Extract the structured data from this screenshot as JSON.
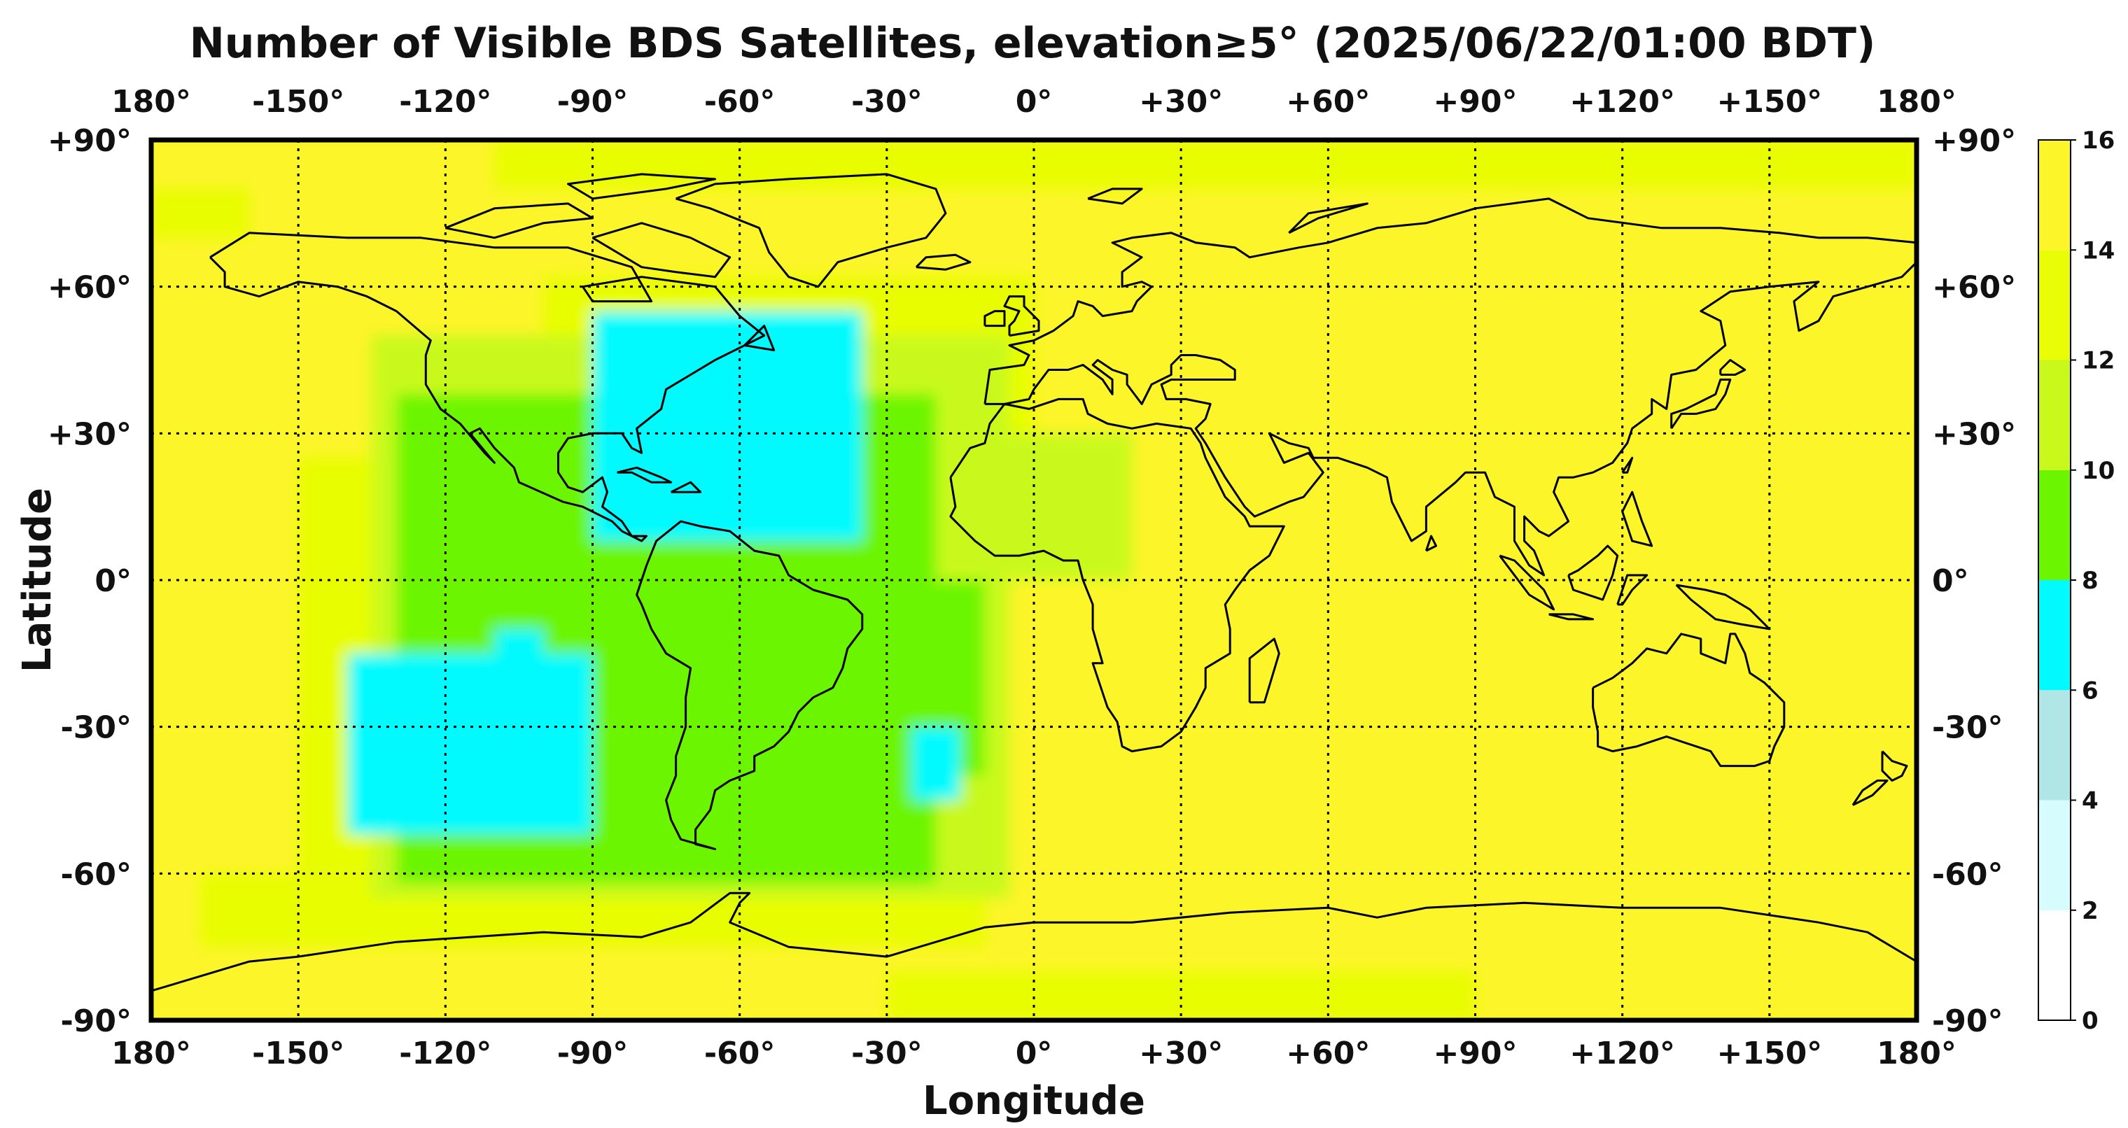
{
  "title": "Number of Visible BDS Satellites, elevation≥5° (2025/06/22/01:00 BDT)",
  "xlabel": "Longitude",
  "ylabel": "Latitude",
  "lon_ticks": [
    "180°",
    "-150°",
    "-120°",
    "-90°",
    "-60°",
    "-30°",
    "0°",
    "+30°",
    "+60°",
    "+90°",
    "+120°",
    "+150°",
    "180°"
  ],
  "lat_ticks": [
    "+90°",
    "+60°",
    "+30°",
    "0°",
    "-30°",
    "-60°",
    "-90°"
  ],
  "colorbar": {
    "ticks": [
      "0",
      "2",
      "4",
      "6",
      "8",
      "10",
      "12",
      "14",
      "16"
    ],
    "bins": [
      {
        "range": [
          0,
          2
        ],
        "color": "#ffffff"
      },
      {
        "range": [
          2,
          4
        ],
        "color": "#d6fcfd"
      },
      {
        "range": [
          4,
          6
        ],
        "color": "#b1e6e7"
      },
      {
        "range": [
          6,
          8
        ],
        "color": "#00fafe"
      },
      {
        "range": [
          8,
          10
        ],
        "color": "#6cf500"
      },
      {
        "range": [
          10,
          12
        ],
        "color": "#c9f91c"
      },
      {
        "range": [
          12,
          14
        ],
        "color": "#e8fd06"
      },
      {
        "range": [
          14,
          16
        ],
        "color": "#fcf52a"
      }
    ]
  },
  "map": {
    "extent": {
      "lon": [
        -180,
        180
      ],
      "lat": [
        -90,
        90
      ]
    },
    "background_value": 15,
    "regions": [
      {
        "value": 13,
        "lon": [
          -30,
          90
        ],
        "lat": [
          -90,
          -80
        ]
      },
      {
        "value": 13,
        "lon": [
          -170,
          -10
        ],
        "lat": [
          -75,
          -60
        ]
      },
      {
        "value": 13,
        "lon": [
          -180,
          -160
        ],
        "lat": [
          70,
          80
        ]
      },
      {
        "value": 13,
        "lon": [
          -110,
          180
        ],
        "lat": [
          80,
          90
        ]
      },
      {
        "value": 13,
        "lon": [
          -100,
          0
        ],
        "lat": [
          25,
          62
        ]
      },
      {
        "value": 13,
        "lon": [
          -150,
          -20
        ],
        "lat": [
          -60,
          25
        ]
      },
      {
        "value": 11,
        "lon": [
          -135,
          -5
        ],
        "lat": [
          -65,
          50
        ]
      },
      {
        "value": 11,
        "lon": [
          -30,
          20
        ],
        "lat": [
          0,
          30
        ]
      },
      {
        "value": 9,
        "lon": [
          -130,
          -20
        ],
        "lat": [
          -62,
          38
        ]
      },
      {
        "value": 9,
        "lon": [
          -25,
          -10
        ],
        "lat": [
          -40,
          0
        ]
      },
      {
        "value": 7,
        "lon": [
          -90,
          -35
        ],
        "lat": [
          8,
          55
        ]
      },
      {
        "value": 7,
        "lon": [
          -140,
          -90
        ],
        "lat": [
          -52,
          -15
        ]
      },
      {
        "value": 7,
        "lon": [
          -110,
          -100
        ],
        "lat": [
          -15,
          -10
        ]
      },
      {
        "value": 7,
        "lon": [
          -25,
          -15
        ],
        "lat": [
          -45,
          -30
        ]
      }
    ]
  }
}
